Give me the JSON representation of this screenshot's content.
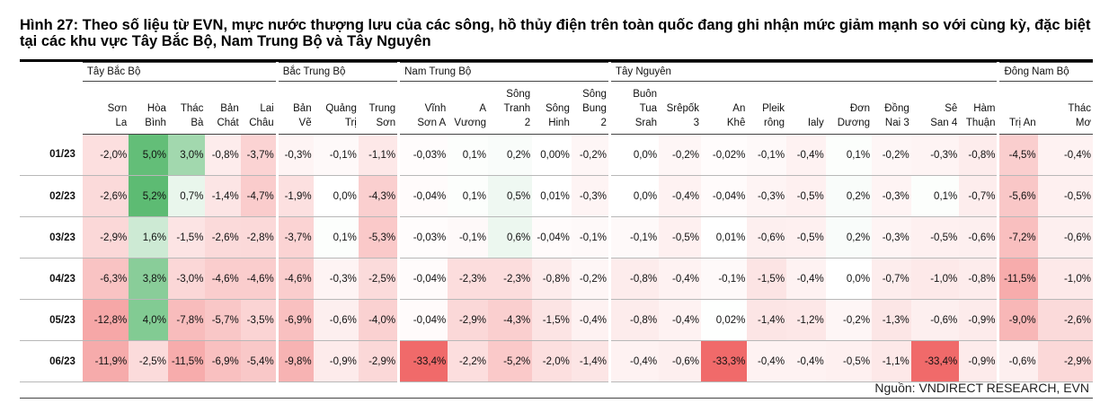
{
  "title": "Hình 27: Theo số liệu từ EVN, mực nước thượng lưu của các sông, hồ thủy điện trên toàn quốc đang ghi nhận mức giảm mạnh so với cùng kỳ, đặc biệt tại các khu vực Tây Bắc Bộ, Nam Trung Bộ và Tây Nguyên",
  "source": "Nguồn: VNDIRECT RESEARCH, EVN",
  "colors": {
    "negative_strong": "#f06a6a",
    "positive_strong": "#5dbb73"
  },
  "chart_data": {
    "type": "table",
    "groups": [
      {
        "name": "Tây Bắc Bộ",
        "columns": [
          "Sơn La",
          "Hòa Bình",
          "Thác Bà",
          "Bản Chát",
          "Lai Châu"
        ]
      },
      {
        "name": "Bắc Trung Bộ",
        "columns": [
          "Bản Vẽ",
          "Quảng Trị",
          "Trung Sơn"
        ]
      },
      {
        "name": "Nam Trung Bộ",
        "columns": [
          "Vĩnh Sơn A",
          "A Vương",
          "Sông Tranh 2",
          "Sông Hinh",
          "Sông Bung 2"
        ]
      },
      {
        "name": "Tây Nguyên",
        "columns": [
          "Buôn Tua Srah",
          "Srêpốk 3",
          "An Khê",
          "Pleik rông",
          "Ialy",
          "Đơn Dương",
          "Đồng Nai 3",
          "Sê San 4",
          "Hàm Thuận"
        ]
      },
      {
        "name": "Đông Nam Bộ",
        "columns": [
          "Trị An",
          "Thác Mơ"
        ]
      }
    ],
    "rows": [
      {
        "month": "01/23",
        "values": [
          -2.0,
          5.0,
          3.0,
          -0.8,
          -3.7,
          -0.3,
          -0.1,
          -1.1,
          -0.03,
          0.1,
          0.2,
          0.0,
          -0.2,
          0.0,
          -0.2,
          -0.02,
          -0.1,
          -0.4,
          0.1,
          -0.2,
          -0.3,
          -0.8,
          -4.5,
          -0.4
        ]
      },
      {
        "month": "02/23",
        "values": [
          -2.6,
          5.2,
          0.7,
          -1.4,
          -4.7,
          -1.9,
          0.0,
          -4.3,
          -0.04,
          0.1,
          0.5,
          0.01,
          -0.3,
          0.0,
          -0.4,
          -0.04,
          -0.3,
          -0.5,
          0.2,
          -0.3,
          0.1,
          -0.7,
          -5.6,
          -0.5
        ]
      },
      {
        "month": "03/23",
        "values": [
          -2.9,
          1.6,
          -1.5,
          -2.6,
          -2.8,
          -3.7,
          0.1,
          -5.3,
          -0.03,
          -0.1,
          0.6,
          -0.04,
          -0.1,
          -0.1,
          -0.5,
          0.01,
          -0.6,
          -0.5,
          0.2,
          -0.3,
          -0.5,
          -0.6,
          -7.2,
          -0.6
        ]
      },
      {
        "month": "04/23",
        "values": [
          -6.3,
          3.8,
          -3.0,
          -4.6,
          -4.6,
          -4.6,
          -0.3,
          -2.5,
          -0.04,
          -2.3,
          -2.3,
          -0.8,
          -0.2,
          -0.8,
          -0.4,
          -0.1,
          -1.5,
          -0.4,
          0.0,
          -0.7,
          -1.0,
          -0.8,
          -11.5,
          -1.0
        ]
      },
      {
        "month": "05/23",
        "values": [
          -12.8,
          4.0,
          -7.8,
          -5.7,
          -3.5,
          -6.9,
          -0.6,
          -4.0,
          -0.04,
          -2.9,
          -4.3,
          -1.5,
          -0.4,
          -0.8,
          -0.4,
          0.02,
          -1.4,
          -1.2,
          -0.2,
          -1.3,
          -0.6,
          -0.9,
          -9.0,
          -2.6
        ]
      },
      {
        "month": "06/23",
        "values": [
          -11.9,
          -2.5,
          -11.5,
          -6.9,
          -5.4,
          -9.8,
          -0.9,
          -2.9,
          -33.4,
          -2.2,
          -5.2,
          -2.0,
          -1.4,
          -0.4,
          -0.6,
          -33.3,
          -0.4,
          -0.4,
          -0.5,
          -1.1,
          -33.4,
          -0.9,
          -0.6,
          -2.9
        ]
      }
    ],
    "display": [
      [
        "-2,0%",
        "5,0%",
        "3,0%",
        "-0,8%",
        "-3,7%",
        "-0,3%",
        "-0,1%",
        "-1,1%",
        "-0,03%",
        "0,1%",
        "0,2%",
        "0,00%",
        "-0,2%",
        "0,0%",
        "-0,2%",
        "-0,02%",
        "-0,1%",
        "-0,4%",
        "0,1%",
        "-0,2%",
        "-0,3%",
        "-0,8%",
        "-4,5%",
        "-0,4%"
      ],
      [
        "-2,6%",
        "5,2%",
        "0,7%",
        "-1,4%",
        "-4,7%",
        "-1,9%",
        "0,0%",
        "-4,3%",
        "-0,04%",
        "0,1%",
        "0,5%",
        "0,01%",
        "-0,3%",
        "0,0%",
        "-0,4%",
        "-0,04%",
        "-0,3%",
        "-0,5%",
        "0,2%",
        "-0,3%",
        "0,1%",
        "-0,7%",
        "-5,6%",
        "-0,5%"
      ],
      [
        "-2,9%",
        "1,6%",
        "-1,5%",
        "-2,6%",
        "-2,8%",
        "-3,7%",
        "0,1%",
        "-5,3%",
        "-0,03%",
        "-0,1%",
        "0,6%",
        "-0,04%",
        "-0,1%",
        "-0,1%",
        "-0,5%",
        "0,01%",
        "-0,6%",
        "-0,5%",
        "0,2%",
        "-0,3%",
        "-0,5%",
        "-0,6%",
        "-7,2%",
        "-0,6%"
      ],
      [
        "-6,3%",
        "3,8%",
        "-3,0%",
        "-4,6%",
        "-4,6%",
        "-4,6%",
        "-0,3%",
        "-2,5%",
        "-0,04%",
        "-2,3%",
        "-2,3%",
        "-0,8%",
        "-0,2%",
        "-0,8%",
        "-0,4%",
        "-0,1%",
        "-1,5%",
        "-0,4%",
        "0,0%",
        "-0,7%",
        "-1,0%",
        "-0,8%",
        "-11,5%",
        "-1,0%"
      ],
      [
        "-12,8%",
        "4,0%",
        "-7,8%",
        "-5,7%",
        "-3,5%",
        "-6,9%",
        "-0,6%",
        "-4,0%",
        "-0,04%",
        "-2,9%",
        "-4,3%",
        "-1,5%",
        "-0,4%",
        "-0,8%",
        "-0,4%",
        "0,02%",
        "-1,4%",
        "-1,2%",
        "-0,2%",
        "-1,3%",
        "-0,6%",
        "-0,9%",
        "-9,0%",
        "-2,6%"
      ],
      [
        "-11,9%",
        "-2,5%",
        "-11,5%",
        "-6,9%",
        "-5,4%",
        "-9,8%",
        "-0,9%",
        "-2,9%",
        "-33,4%",
        "-2,2%",
        "-5,2%",
        "-2,0%",
        "-1,4%",
        "-0,4%",
        "-0,6%",
        "-33,3%",
        "-0,4%",
        "-0,4%",
        "-0,5%",
        "-1,1%",
        "-33,4%",
        "-0,9%",
        "-0,6%",
        "-2,9%"
      ]
    ]
  }
}
